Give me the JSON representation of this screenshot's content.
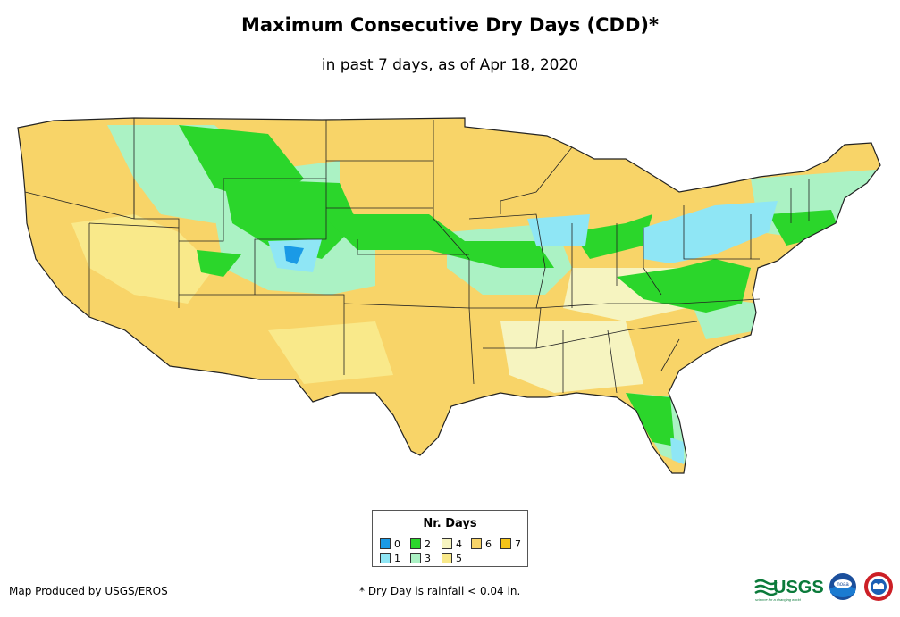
{
  "title": "Maximum Consecutive Dry Days (CDD)*",
  "subtitle": "in past 7 days, as of Apr 18, 2020",
  "legend": {
    "title": "Nr. Days",
    "items": [
      {
        "label": "0",
        "color": "#1a9ae6"
      },
      {
        "label": "1",
        "color": "#8fe6f5"
      },
      {
        "label": "2",
        "color": "#2bd62b"
      },
      {
        "label": "3",
        "color": "#abf2c4"
      },
      {
        "label": "4",
        "color": "#f6f4c0"
      },
      {
        "label": "5",
        "color": "#f9e98a"
      },
      {
        "label": "6",
        "color": "#f8d468"
      },
      {
        "label": "7",
        "color": "#f5c419"
      }
    ]
  },
  "credit": "Map Produced by USGS/EROS",
  "footnote": "* Dry Day is rainfall < 0.04 in.",
  "logos": {
    "usgs": "USGS",
    "usgs_tagline": "science for a changing world",
    "noaa": "noaa"
  }
}
